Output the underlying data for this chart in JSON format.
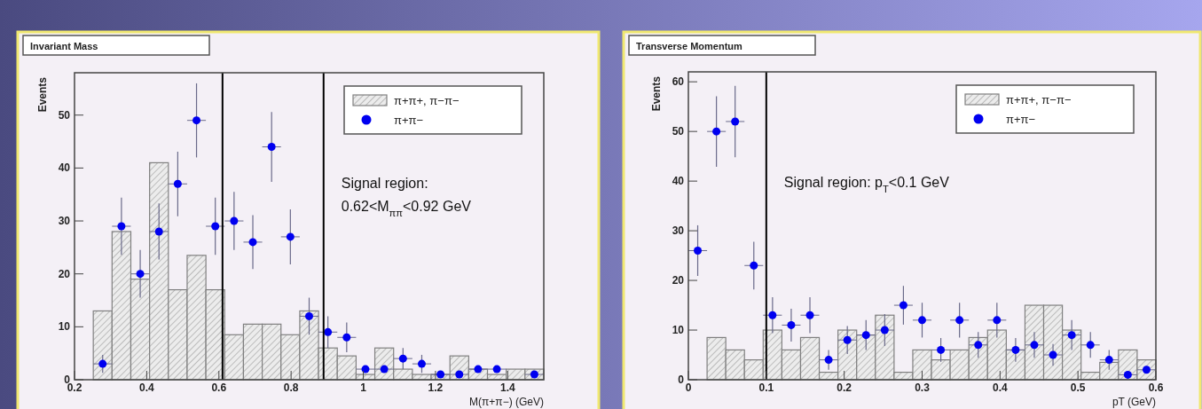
{
  "chart_data": [
    {
      "type": "histogram",
      "title": "Invariant Mass",
      "xlabel": "M(π+π−) (GeV)",
      "ylabel": "Events",
      "xlim": [
        0.2,
        1.5
      ],
      "ylim": [
        0,
        58
      ],
      "xticks": [
        0.2,
        0.4,
        0.6,
        0.8,
        1,
        1.2,
        1.4
      ],
      "yticks": [
        0,
        10,
        20,
        30,
        40,
        50
      ],
      "legend": "top right",
      "annotations": [
        "Signal region:",
        "0.62<M$_{ππ}$<0.92 GeV"
      ],
      "ref_lines": [
        {
          "axis": "x",
          "value": 0.61,
          "color": "#000000"
        },
        {
          "axis": "x",
          "value": 0.89,
          "color": "#000000"
        }
      ],
      "series": [
        {
          "name": "π+π+, π−π−",
          "color": "#808080",
          "bins": [
            0.2,
            0.252,
            0.304,
            0.356,
            0.408,
            0.46,
            0.512,
            0.564,
            0.616,
            0.668,
            0.72,
            0.772,
            0.824,
            0.876,
            0.928,
            0.98,
            1.032,
            1.084,
            1.136,
            1.188,
            1.24,
            1.292,
            1.344,
            1.396,
            1.448,
            1.5
          ],
          "values": [
            0,
            13,
            28,
            19,
            41,
            17,
            23.5,
            17,
            8.5,
            10.5,
            10.5,
            8.5,
            13,
            6,
            4.5,
            1,
            6,
            2,
            1,
            1,
            4.5,
            2,
            1,
            2,
            2
          ]
        },
        {
          "type": "scatter",
          "name": "π+π−",
          "color": "#0000f0",
          "marker": "circle",
          "x": [
            0.278,
            0.33,
            0.382,
            0.434,
            0.486,
            0.538,
            0.59,
            0.642,
            0.694,
            0.746,
            0.798,
            0.85,
            0.902,
            0.954,
            1.006,
            1.058,
            1.11,
            1.162,
            1.214,
            1.266,
            1.318,
            1.37,
            1.474
          ],
          "values": [
            3,
            29,
            20,
            28,
            37,
            49,
            29,
            30,
            26,
            44,
            27,
            12,
            9,
            8,
            2,
            2,
            4,
            3,
            1,
            1,
            2,
            2,
            1
          ],
          "errors": [
            1.7,
            5.4,
            4.5,
            5.3,
            6.1,
            7,
            5.4,
            5.5,
            5.1,
            6.6,
            5.2,
            3.5,
            3,
            2.8,
            null,
            null,
            2,
            1.7,
            null,
            null,
            null,
            null,
            null
          ],
          "xerrors": [
            0.026,
            0.026,
            0.026,
            0.026,
            0.026,
            0.026,
            0.026,
            0.026,
            0.026,
            0.026,
            0.026,
            0.026,
            0.026,
            0.026,
            0.026,
            0.026,
            0.026,
            0.026,
            0.026,
            0.026,
            0.026,
            0.026,
            0.026
          ]
        }
      ]
    },
    {
      "type": "histogram",
      "title": "Transverse Momentum",
      "xlabel": "pT (GeV)",
      "ylabel": "Events",
      "xlim": [
        0,
        0.6
      ],
      "ylim": [
        0,
        62
      ],
      "xticks": [
        0,
        0.1,
        0.2,
        0.3,
        0.4,
        0.5,
        0.6
      ],
      "yticks": [
        0,
        10,
        20,
        30,
        40,
        50,
        60
      ],
      "legend": "top right",
      "annotations": [
        "Signal region: p$_{T}$<0.1 GeV"
      ],
      "ref_lines": [
        {
          "axis": "x",
          "value": 0.1,
          "color": "#000000"
        }
      ],
      "series": [
        {
          "name": "π+π+, π−π−",
          "color": "#808080",
          "bins": [
            0,
            0.024,
            0.048,
            0.072,
            0.096,
            0.12,
            0.144,
            0.168,
            0.192,
            0.216,
            0.24,
            0.264,
            0.288,
            0.312,
            0.336,
            0.36,
            0.384,
            0.408,
            0.432,
            0.456,
            0.48,
            0.504,
            0.528,
            0.552,
            0.576,
            0.6
          ],
          "values": [
            0,
            8.5,
            6,
            4,
            10,
            6,
            8.5,
            1.5,
            10,
            9,
            13,
            1.5,
            6,
            4,
            6,
            8.5,
            10,
            6,
            15,
            15,
            10,
            1.5,
            3.5,
            6,
            4
          ]
        },
        {
          "type": "scatter",
          "name": "π+π−",
          "color": "#0000f0",
          "marker": "circle",
          "x": [
            0.012,
            0.036,
            0.06,
            0.084,
            0.108,
            0.132,
            0.156,
            0.18,
            0.204,
            0.228,
            0.252,
            0.276,
            0.3,
            0.324,
            0.348,
            0.372,
            0.396,
            0.42,
            0.444,
            0.468,
            0.492,
            0.516,
            0.54,
            0.564,
            0.588
          ],
          "values": [
            26,
            50,
            52,
            23,
            13,
            11,
            13,
            4,
            8,
            9,
            10,
            15,
            12,
            6,
            12,
            7,
            12,
            6,
            7,
            5,
            9,
            7,
            4,
            1,
            2
          ],
          "errors": [
            5.1,
            7.1,
            7.2,
            4.8,
            3.6,
            3.3,
            3.6,
            2,
            2.8,
            3,
            3.2,
            3.9,
            3.5,
            2.4,
            3.5,
            2.6,
            3.5,
            2.4,
            2.6,
            2.2,
            3,
            2.6,
            2,
            null,
            null
          ],
          "xerrors": [
            0.012,
            0.012,
            0.012,
            0.012,
            0.012,
            0.012,
            0.012,
            0.012,
            0.012,
            0.012,
            0.012,
            0.012,
            0.012,
            0.012,
            0.012,
            0.012,
            0.012,
            0.012,
            0.012,
            0.012,
            0.012,
            0.012,
            0.012,
            0.012,
            0.012
          ]
        }
      ]
    }
  ]
}
